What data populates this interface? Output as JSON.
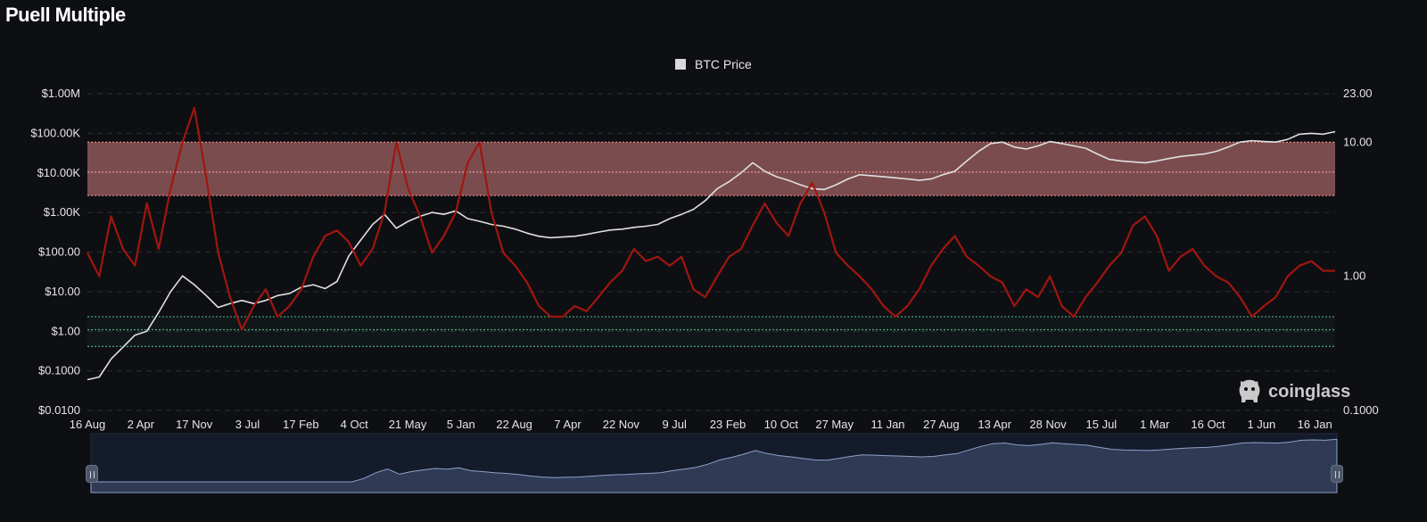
{
  "page_title": "Puell Multiple",
  "watermark": "coinglass",
  "colors": {
    "background": "#0e0f13",
    "btc_price_line": "#e0e0e0",
    "puell_line": "#a0160f",
    "upper_band": "#e88a8a",
    "lower_band": "#4caf7a",
    "navigator_fill": "#2f3a55",
    "navigator_line": "#8ea2c9"
  },
  "chart_data": {
    "type": "line",
    "title": "Puell Multiple",
    "legend": {
      "entries": [
        "BTC Price"
      ],
      "placement": "top-center"
    },
    "x_ticks": [
      "16 Aug",
      "2 Apr",
      "17 Nov",
      "3 Jul",
      "17 Feb",
      "4 Oct",
      "21 May",
      "5 Jan",
      "22 Aug",
      "7 Apr",
      "22 Nov",
      "9 Jul",
      "23 Feb",
      "10 Oct",
      "27 May",
      "11 Jan",
      "27 Aug",
      "13 Apr",
      "28 Nov",
      "15 Jul",
      "1 Mar",
      "16 Oct",
      "1 Jun",
      "16 Jan"
    ],
    "y_left": {
      "scale": "log",
      "range": [
        0.01,
        1000000
      ],
      "ticks": [
        "$1.00M",
        "$100.00K",
        "$10.00K",
        "$1.00K",
        "$100.00",
        "$10.00",
        "$1.00",
        "$0.1000",
        "$0.0100"
      ]
    },
    "y_right": {
      "scale": "log",
      "range": [
        0.1,
        23
      ],
      "ticks": [
        {
          "label": "23.00",
          "value": 23
        },
        {
          "label": "10.00",
          "value": 10
        },
        {
          "label": "1.00",
          "value": 1
        },
        {
          "label": "0.1000",
          "value": 0.1
        }
      ]
    },
    "bands": [
      {
        "axis": "right",
        "from": 4.0,
        "to": 10.0,
        "mid": 6.0,
        "color": "#e88a8a"
      },
      {
        "axis": "right",
        "from": 0.3,
        "to": 0.5,
        "mid": 0.4,
        "color": "#4caf7a"
      }
    ],
    "grid": true,
    "series": [
      {
        "name": "BTC Price",
        "axis": "left",
        "color": "#e0e0e0",
        "points": [
          [
            0,
            0.06
          ],
          [
            0.5,
            0.07
          ],
          [
            1,
            0.2
          ],
          [
            1.5,
            0.4
          ],
          [
            2,
            0.8
          ],
          [
            2.5,
            1.0
          ],
          [
            3,
            3
          ],
          [
            3.5,
            10
          ],
          [
            4,
            25
          ],
          [
            4.5,
            15
          ],
          [
            5,
            8
          ],
          [
            5.5,
            4
          ],
          [
            6,
            5
          ],
          [
            6.5,
            6
          ],
          [
            7,
            5
          ],
          [
            7.5,
            6
          ],
          [
            8,
            8
          ],
          [
            8.5,
            9
          ],
          [
            9,
            13
          ],
          [
            9.5,
            15
          ],
          [
            10,
            12
          ],
          [
            10.5,
            18
          ],
          [
            11,
            80
          ],
          [
            11.5,
            200
          ],
          [
            12,
            500
          ],
          [
            12.5,
            900
          ],
          [
            13,
            400
          ],
          [
            13.5,
            600
          ],
          [
            14,
            800
          ],
          [
            14.5,
            1000
          ],
          [
            15,
            900
          ],
          [
            15.5,
            1100
          ],
          [
            16,
            700
          ],
          [
            16.5,
            600
          ],
          [
            17,
            500
          ],
          [
            17.5,
            450
          ],
          [
            18,
            380
          ],
          [
            18.5,
            300
          ],
          [
            19,
            250
          ],
          [
            19.5,
            230
          ],
          [
            20,
            240
          ],
          [
            20.5,
            250
          ],
          [
            21,
            280
          ],
          [
            21.5,
            320
          ],
          [
            22,
            360
          ],
          [
            22.5,
            380
          ],
          [
            23,
            420
          ],
          [
            23.5,
            450
          ],
          [
            24,
            500
          ],
          [
            24.5,
            700
          ],
          [
            25,
            900
          ],
          [
            25.5,
            1200
          ],
          [
            26,
            2000
          ],
          [
            26.5,
            4000
          ],
          [
            27,
            6000
          ],
          [
            27.5,
            10000
          ],
          [
            28,
            18000
          ],
          [
            28.5,
            11000
          ],
          [
            29,
            8000
          ],
          [
            29.5,
            6500
          ],
          [
            30,
            5000
          ],
          [
            30.5,
            4000
          ],
          [
            31,
            3800
          ],
          [
            31.5,
            5000
          ],
          [
            32,
            7000
          ],
          [
            32.5,
            9000
          ],
          [
            33,
            8500
          ],
          [
            33.5,
            8000
          ],
          [
            34,
            7500
          ],
          [
            34.5,
            7000
          ],
          [
            35,
            6500
          ],
          [
            35.5,
            7000
          ],
          [
            36,
            9000
          ],
          [
            36.5,
            11000
          ],
          [
            37,
            20000
          ],
          [
            37.5,
            35000
          ],
          [
            38,
            55000
          ],
          [
            38.5,
            60000
          ],
          [
            39,
            45000
          ],
          [
            39.5,
            40000
          ],
          [
            40,
            48000
          ],
          [
            40.5,
            62000
          ],
          [
            41,
            55000
          ],
          [
            41.5,
            48000
          ],
          [
            42,
            42000
          ],
          [
            42.5,
            30000
          ],
          [
            43,
            22000
          ],
          [
            43.5,
            20000
          ],
          [
            44,
            19000
          ],
          [
            44.5,
            18000
          ],
          [
            45,
            20000
          ],
          [
            45.5,
            23000
          ],
          [
            46,
            26000
          ],
          [
            46.5,
            28000
          ],
          [
            47,
            30000
          ],
          [
            47.5,
            35000
          ],
          [
            48,
            45000
          ],
          [
            48.5,
            60000
          ],
          [
            49,
            65000
          ],
          [
            49.5,
            62000
          ],
          [
            50,
            60000
          ],
          [
            50.5,
            70000
          ],
          [
            51,
            95000
          ],
          [
            51.5,
            100000
          ],
          [
            52,
            95000
          ],
          [
            52.5,
            110000
          ]
        ]
      },
      {
        "name": "Puell Multiple",
        "axis": "right",
        "color": "#a0160f",
        "points": [
          [
            0,
            1.5
          ],
          [
            0.5,
            1.0
          ],
          [
            1,
            2.8
          ],
          [
            1.5,
            1.6
          ],
          [
            2,
            1.2
          ],
          [
            2.5,
            3.5
          ],
          [
            3,
            1.6
          ],
          [
            3.5,
            4.5
          ],
          [
            4,
            10
          ],
          [
            4.5,
            18
          ],
          [
            5,
            5.5
          ],
          [
            5.5,
            1.5
          ],
          [
            6,
            0.7
          ],
          [
            6.5,
            0.4
          ],
          [
            7,
            0.6
          ],
          [
            7.5,
            0.8
          ],
          [
            8,
            0.5
          ],
          [
            8.5,
            0.6
          ],
          [
            9,
            0.8
          ],
          [
            9.5,
            1.4
          ],
          [
            10,
            2.0
          ],
          [
            10.5,
            2.2
          ],
          [
            11,
            1.8
          ],
          [
            11.5,
            1.2
          ],
          [
            12,
            1.6
          ],
          [
            12.5,
            3.0
          ],
          [
            13,
            10
          ],
          [
            13.5,
            4.5
          ],
          [
            14,
            2.8
          ],
          [
            14.5,
            1.5
          ],
          [
            15,
            2.0
          ],
          [
            15.5,
            3.0
          ],
          [
            16,
            7.0
          ],
          [
            16.5,
            10
          ],
          [
            17,
            3.0
          ],
          [
            17.5,
            1.5
          ],
          [
            18,
            1.2
          ],
          [
            18.5,
            0.9
          ],
          [
            19,
            0.6
          ],
          [
            19.5,
            0.5
          ],
          [
            20,
            0.5
          ],
          [
            20.5,
            0.6
          ],
          [
            21,
            0.55
          ],
          [
            21.5,
            0.7
          ],
          [
            22,
            0.9
          ],
          [
            22.5,
            1.1
          ],
          [
            23,
            1.6
          ],
          [
            23.5,
            1.3
          ],
          [
            24,
            1.4
          ],
          [
            24.5,
            1.2
          ],
          [
            25,
            1.4
          ],
          [
            25.5,
            0.8
          ],
          [
            26,
            0.7
          ],
          [
            26.5,
            1.0
          ],
          [
            27,
            1.4
          ],
          [
            27.5,
            1.6
          ],
          [
            28,
            2.4
          ],
          [
            28.5,
            3.5
          ],
          [
            29,
            2.5
          ],
          [
            29.5,
            2.0
          ],
          [
            30,
            3.5
          ],
          [
            30.5,
            5.0
          ],
          [
            31,
            3.0
          ],
          [
            31.5,
            1.5
          ],
          [
            32,
            1.2
          ],
          [
            32.5,
            1.0
          ],
          [
            33,
            0.8
          ],
          [
            33.5,
            0.6
          ],
          [
            34,
            0.5
          ],
          [
            34.5,
            0.6
          ],
          [
            35,
            0.8
          ],
          [
            35.5,
            1.2
          ],
          [
            36,
            1.6
          ],
          [
            36.5,
            2.0
          ],
          [
            37,
            1.4
          ],
          [
            37.5,
            1.2
          ],
          [
            38,
            1.0
          ],
          [
            38.5,
            0.9
          ],
          [
            39,
            0.6
          ],
          [
            39.5,
            0.8
          ],
          [
            40,
            0.7
          ],
          [
            40.5,
            1.0
          ],
          [
            41,
            0.6
          ],
          [
            41.5,
            0.5
          ],
          [
            42,
            0.7
          ],
          [
            42.5,
            0.9
          ],
          [
            43,
            1.2
          ],
          [
            43.5,
            1.5
          ],
          [
            44,
            2.4
          ],
          [
            44.5,
            2.8
          ],
          [
            45,
            2.0
          ],
          [
            45.5,
            1.1
          ],
          [
            46,
            1.4
          ],
          [
            46.5,
            1.6
          ],
          [
            47,
            1.2
          ],
          [
            47.5,
            1.0
          ],
          [
            48,
            0.9
          ],
          [
            48.5,
            0.7
          ],
          [
            49,
            0.5
          ],
          [
            49.5,
            0.6
          ],
          [
            50,
            0.7
          ],
          [
            50.5,
            1.0
          ],
          [
            51,
            1.2
          ],
          [
            51.5,
            1.3
          ],
          [
            52,
            1.1
          ],
          [
            52.5,
            1.1
          ]
        ]
      }
    ]
  }
}
